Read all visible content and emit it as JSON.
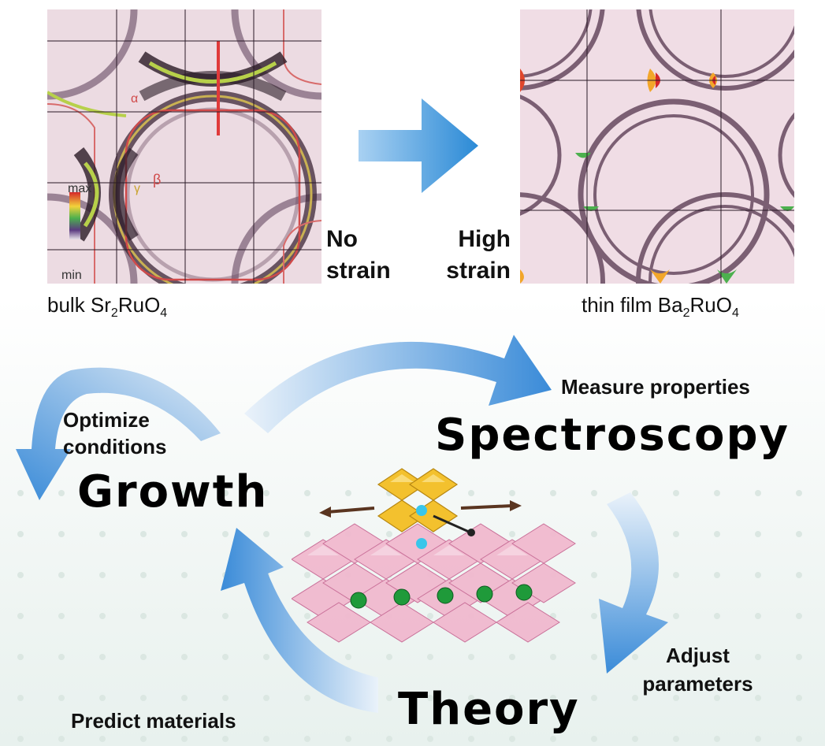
{
  "panels": {
    "left": {
      "caption_prefix": "bulk Sr",
      "caption_sub1": "2",
      "caption_mid": "RuO",
      "caption_sub2": "4",
      "band_labels": {
        "alpha": "α",
        "beta": "β",
        "gamma": "γ"
      },
      "colorbar": {
        "max": "max",
        "min": "min"
      }
    },
    "right": {
      "caption_prefix": "thin film Ba",
      "caption_sub1": "2",
      "caption_mid": "RuO",
      "caption_sub2": "4"
    },
    "strain_left": [
      "No",
      "strain"
    ],
    "strain_right": [
      "High",
      "strain"
    ]
  },
  "cycle": {
    "growth": "Growth",
    "spectroscopy": "Spectroscopy",
    "theory": "Theory",
    "optimize": [
      "Optimize",
      "conditions"
    ],
    "measure": "Measure properties",
    "adjust": [
      "Adjust",
      "parameters"
    ],
    "predict": "Predict materials"
  },
  "colors": {
    "arrow_dark": "#2f80d0",
    "arrow_light": "#dbe9f6",
    "fermi_bg": "#efdde4",
    "fermi_line": "#4a2a44",
    "octahedra_gold": "#f3c12e",
    "octahedra_pink": "#e9a3c0",
    "atom_green": "#1f9a3a",
    "atom_cyan": "#38c6ea"
  }
}
